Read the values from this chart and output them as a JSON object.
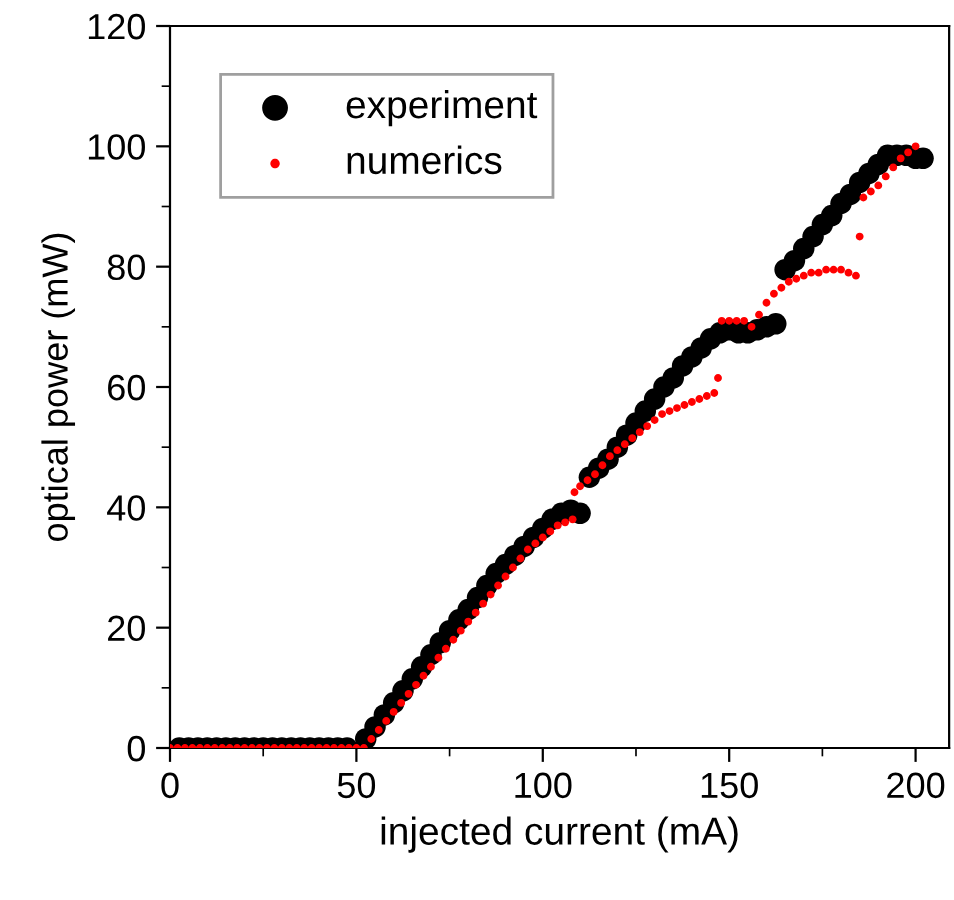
{
  "chart_data": {
    "type": "scatter",
    "xlabel": "injected current (mA)",
    "ylabel": "optical power (mW)",
    "xlim": [
      0,
      209
    ],
    "ylim": [
      0,
      120
    ],
    "xticks": [
      0,
      50,
      100,
      150,
      200
    ],
    "yticks": [
      0,
      20,
      40,
      60,
      80,
      100,
      120
    ],
    "grid": false,
    "legend": "top left",
    "marker": "circle",
    "series": [
      {
        "name": "experiment",
        "color": "#000000",
        "x": [
          2.5,
          5,
          7.5,
          10,
          12.5,
          15,
          17.5,
          20,
          22.5,
          25,
          27.5,
          30,
          32.5,
          35,
          37.5,
          40,
          42.5,
          45,
          47.5,
          52.5,
          55,
          57.5,
          60,
          62.5,
          65,
          67.5,
          70,
          72.5,
          75,
          77.5,
          80,
          82.5,
          85,
          87.5,
          90,
          92.5,
          95,
          97.5,
          100,
          102.5,
          105,
          107.5,
          110,
          112.5,
          115,
          117.5,
          120,
          122.5,
          125,
          127.5,
          130,
          132.5,
          135,
          137.5,
          140,
          142.5,
          145,
          147.5,
          150,
          152.5,
          155,
          157.5,
          160,
          162.5,
          165,
          167.5,
          170,
          172.5,
          175,
          177.5,
          180,
          182.5,
          185,
          187.5,
          190,
          192.5,
          195,
          197.5,
          200,
          202
        ],
        "values": [
          0,
          0,
          0,
          0,
          0,
          0,
          0,
          0,
          0,
          0,
          0,
          0,
          0,
          0,
          0,
          0,
          0,
          0,
          0,
          1.5,
          3.5,
          5.5,
          7.5,
          9.5,
          11.5,
          13.5,
          15.5,
          17.5,
          19.5,
          21.3,
          23,
          25,
          27,
          29,
          30.5,
          32,
          33.5,
          35,
          36.5,
          38,
          39,
          39.5,
          39,
          45,
          46.5,
          48,
          50,
          52,
          54,
          56,
          58,
          60,
          61.5,
          63.5,
          65,
          66.5,
          68,
          69,
          69.5,
          69,
          69,
          69.5,
          70,
          70.5,
          79.5,
          81,
          83,
          85,
          87,
          88.5,
          90.5,
          92,
          94,
          95.5,
          97,
          98.5,
          98.5,
          98.5,
          98,
          98
        ]
      },
      {
        "name": "numerics",
        "color": "#ff0000",
        "x": [
          0,
          2,
          4,
          6,
          8,
          10,
          12,
          14,
          16,
          18,
          20,
          22,
          24,
          26,
          28,
          30,
          32,
          34,
          36,
          38,
          40,
          42,
          44,
          46,
          48,
          50,
          52,
          54,
          56,
          58,
          60,
          62,
          64,
          66,
          68,
          70,
          72,
          74,
          76,
          78,
          80,
          82,
          84,
          86,
          88,
          90,
          92,
          94,
          96,
          98,
          100,
          102,
          104,
          106,
          108,
          108.5,
          110,
          112,
          114,
          116,
          118,
          120,
          122,
          124,
          126,
          128,
          130,
          132,
          134,
          136,
          138,
          140,
          142,
          144,
          146,
          147,
          148,
          150,
          152,
          154,
          156,
          158,
          160,
          162,
          164,
          166,
          168,
          170,
          172,
          174,
          176,
          178,
          180,
          182,
          184,
          185,
          186,
          188,
          190,
          192,
          194,
          196,
          198,
          200
        ],
        "values": [
          0,
          0,
          0,
          0,
          0,
          0,
          0,
          0,
          0,
          0,
          0,
          0,
          0,
          0,
          0,
          0,
          0,
          0,
          0,
          0,
          0,
          0,
          0,
          0,
          0,
          0,
          0,
          1.5,
          3,
          4.5,
          6,
          7.5,
          9,
          10.5,
          12,
          13.5,
          15,
          16.5,
          18,
          19.5,
          21,
          22.5,
          24,
          25.5,
          27,
          28.5,
          30,
          31.5,
          33,
          34,
          35,
          36,
          37,
          37.5,
          38,
          42.5,
          43.5,
          44.5,
          45.5,
          47,
          48.5,
          49.5,
          50.5,
          51.5,
          52.5,
          53.5,
          54.5,
          55.5,
          56,
          56.5,
          57,
          57.5,
          58,
          58.5,
          59,
          61.5,
          71,
          71,
          71,
          71,
          70,
          72,
          74,
          75.5,
          76.5,
          77.5,
          78,
          78.5,
          79,
          79,
          79.5,
          79.5,
          79.5,
          79,
          78.5,
          85,
          91.5,
          92.5,
          93.5,
          95,
          96.5,
          98,
          99,
          100
        ]
      }
    ]
  }
}
